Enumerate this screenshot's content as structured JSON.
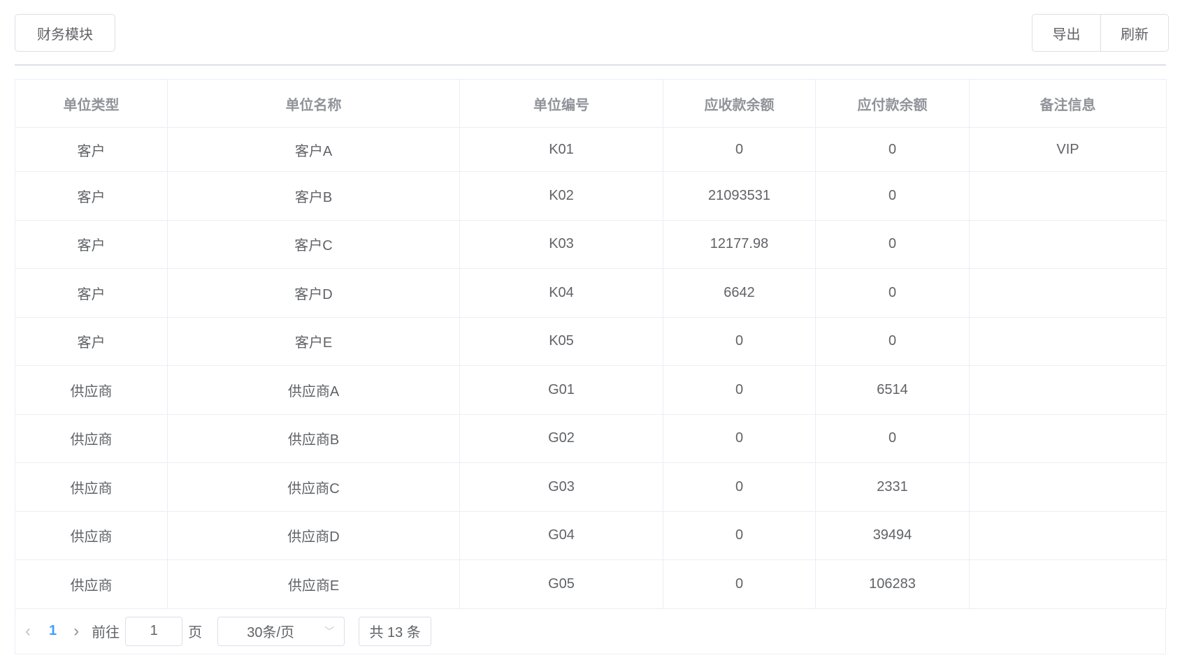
{
  "toolbar": {
    "module": "财务模块",
    "export": "导出",
    "refresh": "刷新"
  },
  "table": {
    "headers": [
      "单位类型",
      "单位名称",
      "单位编号",
      "应收款余额",
      "应付款余额",
      "备注信息"
    ],
    "rows": [
      [
        "客户",
        "客户A",
        "K01",
        "0",
        "0",
        "VIP"
      ],
      [
        "客户",
        "客户B",
        "K02",
        "21093531",
        "0",
        ""
      ],
      [
        "客户",
        "客户C",
        "K03",
        "12177.98",
        "0",
        ""
      ],
      [
        "客户",
        "客户D",
        "K04",
        "6642",
        "0",
        ""
      ],
      [
        "客户",
        "客户E",
        "K05",
        "0",
        "0",
        ""
      ],
      [
        "供应商",
        "供应商A",
        "G01",
        "0",
        "6514",
        ""
      ],
      [
        "供应商",
        "供应商B",
        "G02",
        "0",
        "0",
        ""
      ],
      [
        "供应商",
        "供应商C",
        "G03",
        "0",
        "2331",
        ""
      ],
      [
        "供应商",
        "供应商D",
        "G04",
        "0",
        "39494",
        ""
      ],
      [
        "供应商",
        "供应商E",
        "G05",
        "0",
        "106283",
        ""
      ]
    ]
  },
  "pagination": {
    "current": "1",
    "goto_label": "前往",
    "goto_value": "1",
    "page_label": "页",
    "page_size": "30条/页",
    "total": "共 13 条",
    "accent": "#409eff"
  }
}
